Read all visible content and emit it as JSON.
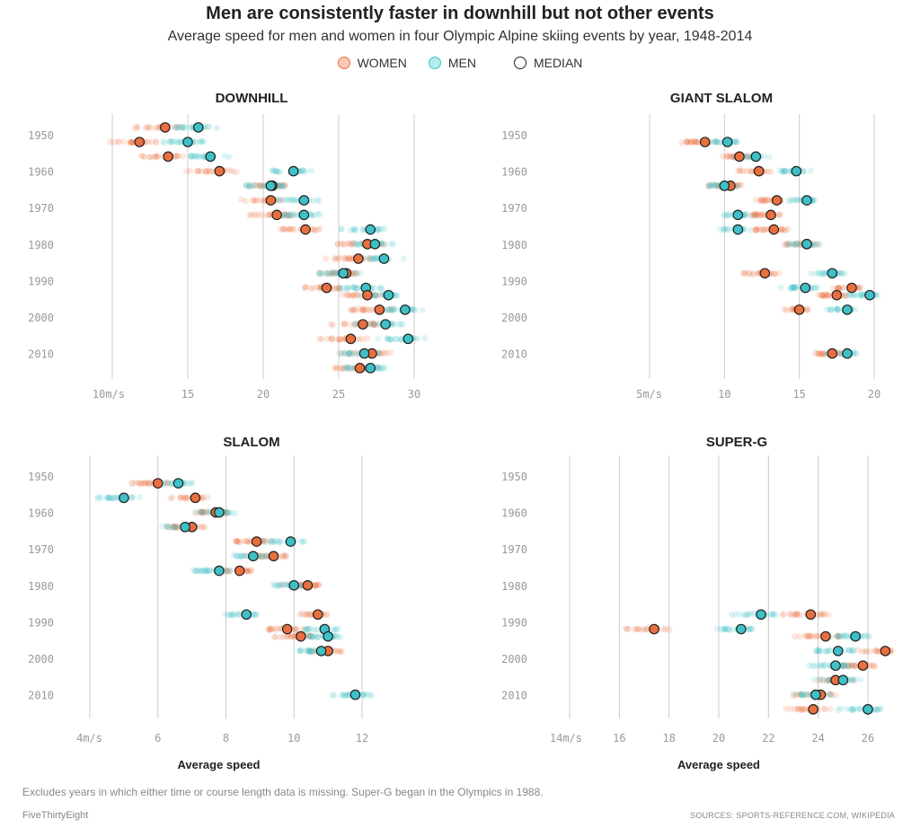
{
  "header": {
    "title": "Men are consistently faster in downhill but not other events",
    "subtitle": "Average speed for men and women in four Olympic Alpine skiing events by year, 1948-2014"
  },
  "legend": [
    {
      "label": "WOMEN",
      "fill": "#f9c9b4",
      "stroke": "#e8754a"
    },
    {
      "label": "MEN",
      "fill": "#b5ecec",
      "stroke": "#3ec1c6"
    },
    {
      "label": "MEDIAN",
      "fill": "#ffffff",
      "stroke": "#222222"
    }
  ],
  "colors": {
    "women": "#ea6f3f",
    "men": "#3ec1c6",
    "median_stroke": "#222222",
    "grid": "#cccccc"
  },
  "footer": {
    "note": "Excludes years in which either time or course length data is missing. Super-G began in the Olympics in 1988.",
    "brand": "FiveThirtyEight",
    "sources": "SOURCES: SPORTS-REFERENCE.COM, WIKIPEDIA"
  },
  "chart_data": [
    {
      "type": "scatter",
      "title": "DOWNHILL",
      "xlabel": "",
      "ticks": [
        10,
        15,
        20,
        25,
        30
      ],
      "tick_labels": [
        "10m/s",
        "15",
        "20",
        "25",
        "30"
      ],
      "xlim": [
        6,
        31
      ],
      "year_ticks": [
        "1950",
        "1960",
        "1970",
        "1980",
        "1990",
        "2000",
        "2010"
      ],
      "rows": [
        {
          "year": 1948,
          "women": 13.5,
          "men": 15.7
        },
        {
          "year": 1952,
          "women": 11.8,
          "men": 15.0
        },
        {
          "year": 1956,
          "women": 13.7,
          "men": 16.5
        },
        {
          "year": 1960,
          "women": 17.1,
          "men": 22.0
        },
        {
          "year": 1964,
          "women": 20.6,
          "men": 20.5
        },
        {
          "year": 1968,
          "women": 20.5,
          "men": 22.7
        },
        {
          "year": 1972,
          "women": 20.9,
          "men": 22.7
        },
        {
          "year": 1976,
          "women": 22.8,
          "men": 27.1
        },
        {
          "year": 1980,
          "women": 26.9,
          "men": 27.4
        },
        {
          "year": 1984,
          "women": 26.3,
          "men": 28.0
        },
        {
          "year": 1988,
          "women": 25.5,
          "men": 25.3
        },
        {
          "year": 1992,
          "women": 24.2,
          "men": 26.8
        },
        {
          "year": 1994,
          "women": 26.9,
          "men": 28.3
        },
        {
          "year": 1998,
          "women": 27.7,
          "men": 29.4
        },
        {
          "year": 2002,
          "women": 26.6,
          "men": 28.1
        },
        {
          "year": 2006,
          "women": 25.8,
          "men": 29.6
        },
        {
          "year": 2010,
          "women": 27.2,
          "men": 26.7
        },
        {
          "year": 2014,
          "women": 26.4,
          "men": 27.1
        }
      ]
    },
    {
      "type": "scatter",
      "title": "GIANT SLALOM",
      "xlabel": "",
      "ticks": [
        5,
        10,
        15,
        20
      ],
      "tick_labels": [
        "5m/s",
        "10",
        "15",
        "20"
      ],
      "xlim": [
        3.5,
        20.5
      ],
      "year_ticks": [
        "1950",
        "1960",
        "1970",
        "1980",
        "1990",
        "2000",
        "2010"
      ],
      "rows": [
        {
          "year": 1952,
          "women": 8.7,
          "men": 10.2
        },
        {
          "year": 1956,
          "women": 11.0,
          "men": 12.1
        },
        {
          "year": 1960,
          "women": 12.3,
          "men": 14.8
        },
        {
          "year": 1964,
          "women": 10.4,
          "men": 10.0
        },
        {
          "year": 1968,
          "women": 13.5,
          "men": 15.5
        },
        {
          "year": 1972,
          "women": 13.1,
          "men": 10.9
        },
        {
          "year": 1976,
          "women": 13.3,
          "men": 10.9
        },
        {
          "year": 1980,
          "women": 15.5,
          "men": 15.5
        },
        {
          "year": 1988,
          "women": 12.7,
          "men": 17.2
        },
        {
          "year": 1992,
          "women": 18.5,
          "men": 15.4
        },
        {
          "year": 1994,
          "women": 17.5,
          "men": 19.7
        },
        {
          "year": 1998,
          "women": 15.0,
          "men": 18.2
        },
        {
          "year": 2010,
          "women": 17.2,
          "men": 18.2
        }
      ]
    },
    {
      "type": "scatter",
      "title": "SLALOM",
      "xlabel": "Average speed",
      "ticks": [
        4,
        6,
        8,
        10,
        12
      ],
      "tick_labels": [
        "4m/s",
        "6",
        "8",
        "10",
        "12"
      ],
      "xlim": [
        3,
        13
      ],
      "year_ticks": [
        "1950",
        "1960",
        "1970",
        "1980",
        "1990",
        "2000",
        "2010"
      ],
      "rows": [
        {
          "year": 1952,
          "women": 6.0,
          "men": 6.6
        },
        {
          "year": 1956,
          "women": 7.1,
          "men": 5.0
        },
        {
          "year": 1960,
          "women": 7.7,
          "men": 7.8
        },
        {
          "year": 1964,
          "women": 7.0,
          "men": 6.8
        },
        {
          "year": 1968,
          "women": 8.9,
          "men": 9.9
        },
        {
          "year": 1972,
          "women": 9.4,
          "men": 8.8
        },
        {
          "year": 1976,
          "women": 8.4,
          "men": 7.8
        },
        {
          "year": 1980,
          "women": 10.4,
          "men": 10.0
        },
        {
          "year": 1988,
          "women": 10.7,
          "men": 8.6
        },
        {
          "year": 1992,
          "women": 9.8,
          "men": 10.9
        },
        {
          "year": 1994,
          "women": 10.2,
          "men": 11.0
        },
        {
          "year": 1998,
          "women": 11.0,
          "men": 10.8
        },
        {
          "year": 2010,
          "women": null,
          "men": 11.8
        }
      ]
    },
    {
      "type": "scatter",
      "title": "SUPER-G",
      "xlabel": "Average speed",
      "ticks": [
        14,
        16,
        18,
        20,
        22,
        24,
        26
      ],
      "tick_labels": [
        "14m/s",
        "16",
        "18",
        "20",
        "22",
        "24",
        "26"
      ],
      "xlim": [
        13,
        27
      ],
      "year_ticks": [
        "1950",
        "1960",
        "1970",
        "1980",
        "1990",
        "2000",
        "2010"
      ],
      "rows": [
        {
          "year": 1988,
          "women": 23.7,
          "men": 21.7
        },
        {
          "year": 1992,
          "women": 17.4,
          "men": 20.9
        },
        {
          "year": 1994,
          "women": 24.3,
          "men": 25.5
        },
        {
          "year": 1998,
          "women": 26.7,
          "men": 24.8
        },
        {
          "year": 2002,
          "women": 25.8,
          "men": 24.7
        },
        {
          "year": 2006,
          "women": 24.7,
          "men": 25.0
        },
        {
          "year": 2010,
          "women": 24.1,
          "men": 23.9
        },
        {
          "year": 2014,
          "women": 23.8,
          "men": 26.0
        }
      ]
    }
  ]
}
